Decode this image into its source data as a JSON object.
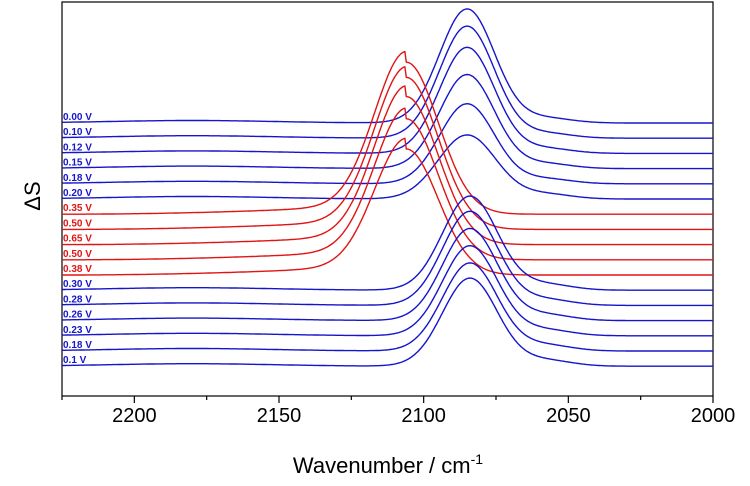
{
  "chart_data": {
    "type": "line",
    "title": "",
    "xlabel": "Wavenumber / cm",
    "xlabel_superscript": "-1",
    "ylabel": "ΔS",
    "xlim": [
      2225,
      2000
    ],
    "x_reversed": true,
    "x_ticks": [
      2200,
      2150,
      2100,
      2050,
      2000
    ],
    "x_tick_labels": [
      "2200",
      "2150",
      "2100",
      "2050",
      "2000"
    ],
    "y_ticks_shown": false,
    "grid": false,
    "legend": "none",
    "label_position": "left",
    "colors": {
      "blue": "#1515cc",
      "red": "#e01414"
    },
    "series": [
      {
        "name": "0.00 V",
        "color": "blue",
        "offset": 0,
        "peak_x": 2085,
        "peak_height": 114,
        "width": 9.5,
        "shoulder_height": 5
      },
      {
        "name": "0.10 V",
        "color": "blue",
        "offset": 1,
        "peak_x": 2085,
        "peak_height": 112,
        "width": 9.5,
        "shoulder_height": 5
      },
      {
        "name": "0.12 V",
        "color": "blue",
        "offset": 2,
        "peak_x": 2085,
        "peak_height": 106,
        "width": 9.5,
        "shoulder_height": 5
      },
      {
        "name": "0.15 V",
        "color": "blue",
        "offset": 3,
        "peak_x": 2085,
        "peak_height": 94,
        "width": 9.5,
        "shoulder_height": 5
      },
      {
        "name": "0.18 V",
        "color": "blue",
        "offset": 4,
        "peak_x": 2085,
        "peak_height": 80,
        "width": 9.5,
        "shoulder_height": 5
      },
      {
        "name": "0.20 V",
        "color": "blue",
        "offset": 5,
        "peak_x": 2085,
        "peak_height": 64,
        "width": 10,
        "shoulder_height": 5
      },
      {
        "name": "0.35 V",
        "color": "red",
        "offset": 6,
        "peak_x": 2106,
        "peak_height": 152,
        "width": 11,
        "shoulder_height": 0
      },
      {
        "name": "0.50 V",
        "color": "red",
        "offset": 7,
        "peak_x": 2106,
        "peak_height": 152,
        "width": 11,
        "shoulder_height": 0
      },
      {
        "name": "0.65 V",
        "color": "red",
        "offset": 8,
        "peak_x": 2106,
        "peak_height": 148,
        "width": 11,
        "shoulder_height": 0
      },
      {
        "name": "0.50 V",
        "color": "red",
        "offset": 9,
        "peak_x": 2106,
        "peak_height": 141,
        "width": 11,
        "shoulder_height": 0
      },
      {
        "name": "0.38 V",
        "color": "red",
        "offset": 10,
        "peak_x": 2106,
        "peak_height": 126,
        "width": 11,
        "shoulder_height": 0
      },
      {
        "name": "0.30 V",
        "color": "blue",
        "offset": 11,
        "peak_x": 2084,
        "peak_height": 94,
        "width": 9.5,
        "shoulder_height": 6
      },
      {
        "name": "0.28 V",
        "color": "blue",
        "offset": 12,
        "peak_x": 2084,
        "peak_height": 94,
        "width": 9.5,
        "shoulder_height": 6
      },
      {
        "name": "0.26 V",
        "color": "blue",
        "offset": 13,
        "peak_x": 2084,
        "peak_height": 92,
        "width": 9.5,
        "shoulder_height": 6
      },
      {
        "name": "0.23 V",
        "color": "blue",
        "offset": 14,
        "peak_x": 2084,
        "peak_height": 90,
        "width": 9.5,
        "shoulder_height": 6
      },
      {
        "name": "0.18 V",
        "color": "blue",
        "offset": 15,
        "peak_x": 2084,
        "peak_height": 88,
        "width": 9.5,
        "shoulder_height": 6
      },
      {
        "name": "0.1 V",
        "color": "blue",
        "offset": 16,
        "peak_x": 2084,
        "peak_height": 88,
        "width": 9.5,
        "shoulder_height": 6
      }
    ]
  }
}
